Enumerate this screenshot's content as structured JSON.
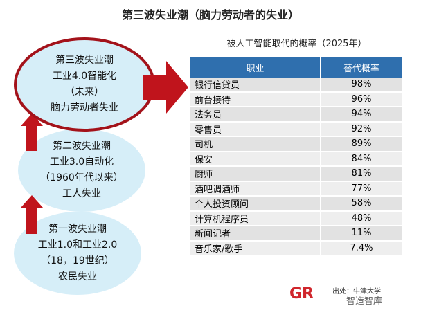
{
  "title": "第三波失业潮（脑力劳动者的失业）",
  "waves": [
    {
      "lines": [
        "第三波失业潮",
        "工业4.0智能化",
        "（未来）",
        "脑力劳动者失业"
      ]
    },
    {
      "lines": [
        "第二波失业潮",
        "工业3.0自动化",
        "（1960年代以来）",
        "工人失业"
      ]
    },
    {
      "lines": [
        "第一波失业潮",
        "工业1.0和工业2.0",
        "（18，19世纪）",
        "农民失业"
      ]
    }
  ],
  "table": {
    "subtitle": "被人工智能取代的概率（2025年）",
    "header": [
      "职业",
      "替代概率"
    ],
    "rows": [
      [
        "银行信贷员",
        "98%"
      ],
      [
        "前台接待",
        "96%"
      ],
      [
        "法务员",
        "94%"
      ],
      [
        "零售员",
        "92%"
      ],
      [
        "司机",
        "89%"
      ],
      [
        "保安",
        "84%"
      ],
      [
        "厨师",
        "81%"
      ],
      [
        "酒吧调酒师",
        "77%"
      ],
      [
        "个人投资顾问",
        "58%"
      ],
      [
        "计算机程序员",
        "48%"
      ],
      [
        "新闻记者",
        "11%"
      ],
      [
        "音乐家/歌手",
        "7.4%"
      ]
    ]
  },
  "source": "出处：牛津大学",
  "watermark": "智造智库"
}
